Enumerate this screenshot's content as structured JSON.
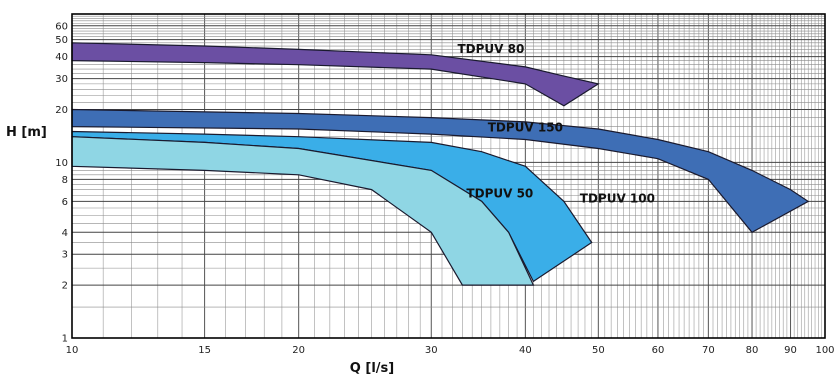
{
  "chart_data": {
    "type": "area",
    "x_scale": "log",
    "y_scale": "log",
    "xlim": [
      10,
      100
    ],
    "ylim": [
      1,
      70
    ],
    "grid": true,
    "xlabel": "Q [l/s]",
    "ylabel": "H [m]",
    "x_ticks": [
      10,
      15,
      20,
      30,
      40,
      50,
      60,
      70,
      80,
      90,
      100
    ],
    "y_ticks": [
      1,
      2,
      3,
      4,
      6,
      8,
      10,
      20,
      30,
      40,
      50,
      60
    ],
    "series": [
      {
        "name": "TDPUV 80",
        "color": "#6b4fa3",
        "upper": [
          [
            10,
            48
          ],
          [
            15,
            46
          ],
          [
            20,
            44
          ],
          [
            30,
            41
          ],
          [
            40,
            35
          ],
          [
            45,
            31
          ],
          [
            50,
            28
          ]
        ],
        "lower": [
          [
            10,
            38
          ],
          [
            15,
            37
          ],
          [
            20,
            36
          ],
          [
            30,
            34
          ],
          [
            40,
            28
          ],
          [
            45,
            21
          ]
        ]
      },
      {
        "name": "TDPUV 150",
        "color": "#3e6eb5",
        "upper": [
          [
            10,
            20
          ],
          [
            20,
            19
          ],
          [
            30,
            18
          ],
          [
            40,
            17
          ],
          [
            50,
            15.5
          ],
          [
            60,
            13.5
          ],
          [
            70,
            11.5
          ],
          [
            80,
            9
          ],
          [
            90,
            7
          ],
          [
            95,
            6
          ]
        ],
        "lower": [
          [
            10,
            16
          ],
          [
            20,
            15.5
          ],
          [
            30,
            14.5
          ],
          [
            40,
            13.5
          ],
          [
            50,
            12
          ],
          [
            60,
            10.5
          ],
          [
            70,
            8
          ],
          [
            80,
            4
          ]
        ]
      },
      {
        "name": "TDPUV 100",
        "color": "#3aaee8",
        "upper": [
          [
            10,
            15
          ],
          [
            15,
            14.5
          ],
          [
            20,
            14
          ],
          [
            30,
            13
          ],
          [
            35,
            11.5
          ],
          [
            40,
            9.5
          ],
          [
            45,
            6
          ],
          [
            49,
            3.5
          ]
        ],
        "lower": [
          [
            10,
            14
          ],
          [
            15,
            13
          ],
          [
            20,
            12
          ],
          [
            30,
            9
          ],
          [
            35,
            6
          ],
          [
            38,
            4
          ],
          [
            41,
            2.1
          ]
        ]
      },
      {
        "name": "TDPUV 50",
        "color": "#8fd6e4",
        "upper": [
          [
            10,
            14
          ],
          [
            15,
            13
          ],
          [
            20,
            12
          ],
          [
            30,
            9
          ],
          [
            35,
            6
          ],
          [
            38,
            4
          ],
          [
            41,
            2
          ]
        ],
        "lower": [
          [
            10,
            9.5
          ],
          [
            15,
            9
          ],
          [
            20,
            8.5
          ],
          [
            25,
            7
          ],
          [
            30,
            4
          ],
          [
            33,
            2
          ]
        ]
      }
    ]
  }
}
